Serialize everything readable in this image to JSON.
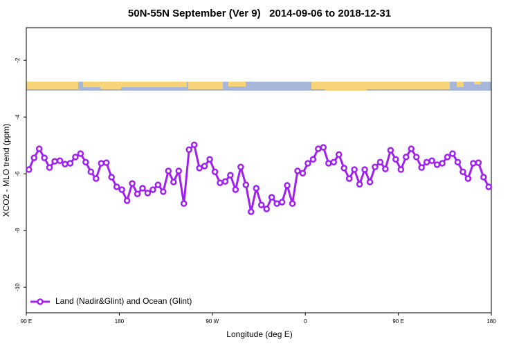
{
  "chart_data": {
    "type": "line",
    "title": "50N-55N September (Ver 9)   2014-09-06 to 2018-12-31",
    "xlabel": "Longitude (deg E)",
    "ylabel": "XCO2 - MLO trend (ppm)",
    "x": [
      92.5,
      97.5,
      102.5,
      107.5,
      112.5,
      117.5,
      122.5,
      127.5,
      132.5,
      137.5,
      142.5,
      147.5,
      152.5,
      157.5,
      162.5,
      167.5,
      172.5,
      177.5,
      182.5,
      187.5,
      192.5,
      197.5,
      202.5,
      207.5,
      212.5,
      217.5,
      222.5,
      227.5,
      232.5,
      237.5,
      242.5,
      247.5,
      252.5,
      257.5,
      262.5,
      267.5,
      272.5,
      277.5,
      282.5,
      287.5,
      292.5,
      297.5,
      302.5,
      307.5,
      312.5,
      317.5,
      322.5,
      327.5,
      332.5,
      337.5,
      342.5,
      347.5,
      352.5,
      357.5,
      362.5,
      367.5,
      372.5,
      377.5,
      382.5,
      387.5,
      392.5,
      397.5,
      402.5,
      407.5,
      412.5,
      417.5,
      422.5,
      427.5,
      432.5,
      437.5,
      442.5,
      447.5,
      452.5,
      457.5,
      462.5,
      467.5,
      472.5,
      477.5,
      482.5,
      487.5,
      492.5,
      497.5,
      502.5,
      507.5,
      512.5,
      517.5,
      522.5,
      527.5,
      532.5,
      537.5
    ],
    "series": [
      {
        "name": "Land (Nadir&Glint) and Ocean (Glint)",
        "color": "#a020f0",
        "values": [
          -5.85,
          -5.44,
          -5.12,
          -5.44,
          -5.78,
          -5.56,
          -5.54,
          -5.66,
          -5.63,
          -5.41,
          -5.29,
          -5.59,
          -5.93,
          -6.17,
          -5.63,
          -5.61,
          -6.12,
          -6.46,
          -6.56,
          -6.95,
          -6.34,
          -6.71,
          -6.51,
          -6.68,
          -6.56,
          -6.39,
          -6.63,
          -5.9,
          -6.29,
          -5.9,
          -7.05,
          -5.15,
          -4.98,
          -5.8,
          -5.73,
          -5.49,
          -5.93,
          -6.32,
          -6.27,
          -6.05,
          -6.56,
          -5.76,
          -6.39,
          -7.34,
          -6.51,
          -7.1,
          -7.24,
          -6.83,
          -7.05,
          -7.0,
          -6.41,
          -7.05,
          -5.9,
          -5.98,
          -5.63,
          -5.49,
          -5.12,
          -5.07,
          -5.63,
          -5.59,
          -5.32,
          -5.8,
          -6.17,
          -5.85,
          -6.37,
          -5.85,
          -6.29,
          -5.76,
          -5.59,
          -5.83,
          -5.17,
          -5.49,
          -5.85,
          -5.41,
          -5.12,
          -5.41,
          -5.78,
          -5.59,
          -5.54,
          -5.68,
          -5.63,
          -5.41,
          -5.29,
          -5.59,
          -5.93,
          -6.17,
          -5.63,
          -5.61,
          -6.12,
          -6.46
        ]
      }
    ],
    "xlim": [
      90,
      540
    ],
    "xticks": [
      {
        "value": 90,
        "label": "90 E"
      },
      180,
      {
        "value": 270,
        "label": "90 W"
      },
      {
        "value": 360,
        "label": "0"
      },
      {
        "value": 450,
        "label": "90 E"
      },
      {
        "value": 540,
        "label": "180"
      }
    ],
    "ylim": [
      -10.9,
      -0.85
    ],
    "yticks": [
      -2,
      -4,
      -6,
      -8,
      -10
    ],
    "legend": "bottom-left"
  }
}
